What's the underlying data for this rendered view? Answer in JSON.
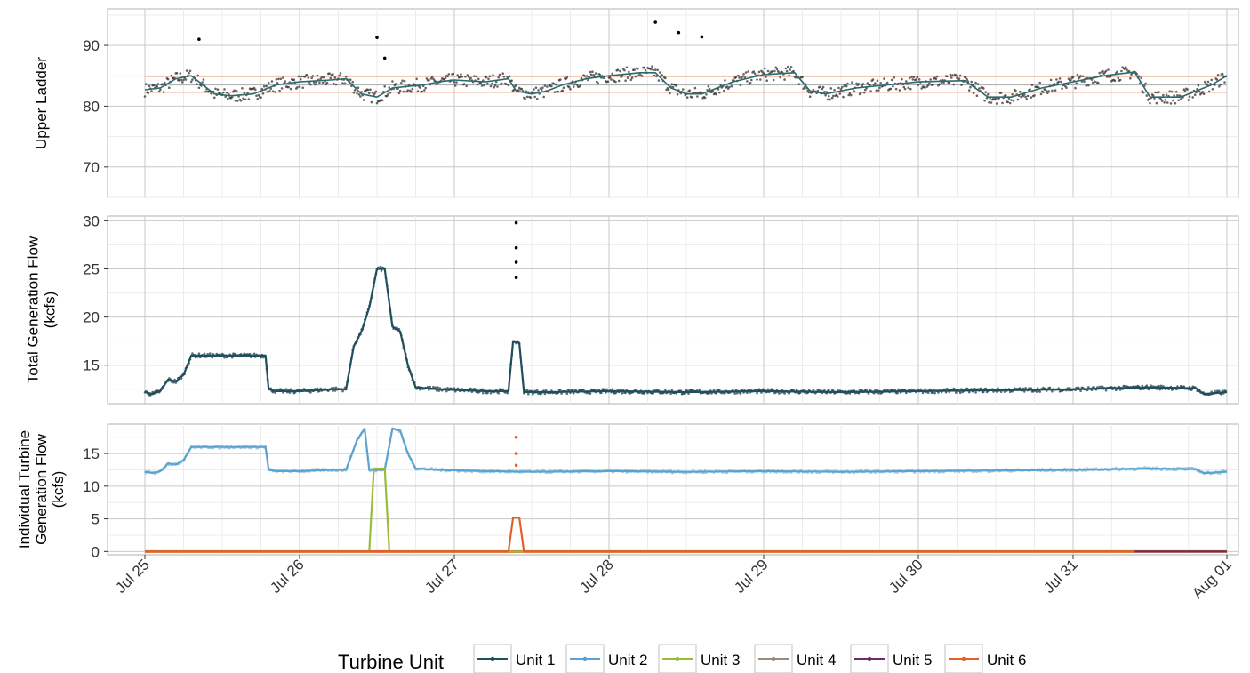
{
  "chart_data": {
    "type": "line",
    "x_axis": {
      "tick_labels": [
        "Jul 25",
        "Jul 26",
        "Jul 27",
        "Jul 28",
        "Jul 29",
        "Jul 30",
        "Jul 31",
        "Aug 01"
      ],
      "range": [
        "2024-07-25",
        "2024-08-01"
      ],
      "rotated_labels": true
    },
    "grid": true,
    "legend": {
      "title": "Turbine Unit",
      "placement": "bottom",
      "entries": [
        {
          "name": "Unit 1",
          "color": "#1f4e5c"
        },
        {
          "name": "Unit 2",
          "color": "#5aa3d0"
        },
        {
          "name": "Unit 3",
          "color": "#9bbb3b"
        },
        {
          "name": "Unit 4",
          "color": "#9a8a7a"
        },
        {
          "name": "Unit 5",
          "color": "#6b2a6b"
        },
        {
          "name": "Unit 6",
          "color": "#e0622a"
        }
      ]
    },
    "panels": [
      {
        "id": "upper",
        "ylabel": [
          "Upper Ladder"
        ],
        "ylim": [
          65,
          96
        ],
        "yticks": [
          70,
          80,
          90
        ],
        "hlines": [
          {
            "y": 82.3,
            "color": "#e8956b"
          },
          {
            "y": 83.5,
            "color": "#b3b3b3"
          },
          {
            "y": 84.9,
            "color": "#e8956b"
          }
        ],
        "series": [
          {
            "name": "Unit 1",
            "color": "#2a6b70",
            "x": [
              0,
              0.1,
              0.2,
              0.3,
              0.45,
              0.55,
              0.7,
              0.85,
              1.0,
              1.2,
              1.3,
              1.4,
              1.5,
              1.6,
              1.8,
              1.9,
              2.0,
              2.2,
              2.35,
              2.4,
              2.5,
              2.6,
              2.7,
              2.85,
              3.0,
              3.2,
              3.3,
              3.4,
              3.5,
              3.6,
              3.8,
              4.0,
              4.2,
              4.3,
              4.4,
              4.6,
              4.8,
              5.0,
              5.3,
              5.45,
              5.6,
              5.8,
              6.0,
              6.2,
              6.4,
              6.5,
              6.7,
              6.9,
              7.0
            ],
            "y": [
              82.7,
              83.0,
              84.5,
              85.0,
              82.0,
              81.7,
              82.0,
              83.5,
              84.0,
              84.3,
              84.5,
              82.0,
              81.5,
              83.0,
              83.5,
              84.0,
              84.3,
              84.0,
              84.5,
              82.5,
              82.0,
              82.5,
              83.5,
              84.5,
              85.0,
              85.5,
              85.5,
              83.0,
              82.0,
              82.0,
              84.0,
              85.2,
              85.5,
              82.5,
              82.0,
              83.0,
              83.5,
              84.0,
              84.2,
              81.5,
              81.5,
              83.0,
              84.0,
              85.0,
              85.6,
              81.5,
              81.5,
              83.5,
              85.0
            ]
          },
          {
            "name": "Outliers",
            "color": "#000000",
            "points": true,
            "x": [
              0.35,
              1.5,
              1.55,
              3.3,
              3.45,
              3.6
            ],
            "y": [
              91.0,
              91.3,
              87.9,
              93.8,
              92.1,
              91.4
            ]
          }
        ]
      },
      {
        "id": "total",
        "ylabel": [
          "Total Generation Flow",
          "(kcfs)"
        ],
        "ylim": [
          11,
          30.5
        ],
        "yticks": [
          15,
          20,
          25,
          30
        ],
        "series": [
          {
            "name": "Unit 1",
            "color": "#1f4e5c",
            "x": [
              0,
              0.05,
              0.1,
              0.15,
              0.2,
              0.25,
              0.3,
              0.35,
              0.7,
              0.78,
              0.8,
              0.85,
              1.0,
              1.2,
              1.3,
              1.35,
              1.4,
              1.45,
              1.5,
              1.55,
              1.6,
              1.65,
              1.7,
              1.75,
              1.9,
              2.2,
              2.35,
              2.38,
              2.42,
              2.45,
              2.6,
              3.0,
              3.5,
              4.0,
              4.5,
              5.0,
              5.5,
              6.0,
              6.5,
              6.8,
              6.85,
              7.0
            ],
            "y": [
              12.2,
              12.0,
              12.3,
              13.5,
              13.3,
              14.0,
              16.0,
              16.0,
              16.0,
              16.0,
              12.5,
              12.3,
              12.3,
              12.5,
              12.5,
              17.0,
              18.5,
              21.0,
              25.0,
              25.0,
              19.0,
              18.5,
              15.0,
              12.7,
              12.5,
              12.3,
              12.3,
              17.5,
              17.3,
              12.2,
              12.2,
              12.3,
              12.2,
              12.3,
              12.2,
              12.3,
              12.4,
              12.5,
              12.7,
              12.6,
              12.0,
              12.2
            ]
          },
          {
            "name": "Outliers",
            "color": "#000000",
            "points": true,
            "x": [
              2.4,
              2.4,
              2.4,
              2.4
            ],
            "y": [
              29.8,
              27.2,
              25.7,
              24.1
            ]
          }
        ]
      },
      {
        "id": "individual",
        "ylabel": [
          "Individual Turbine",
          "Generation Flow",
          "(kcfs)"
        ],
        "ylim": [
          -0.5,
          19.5
        ],
        "yticks": [
          0,
          5,
          10,
          15
        ],
        "series": [
          {
            "name": "Unit 2",
            "color": "#5aa3d0",
            "x": [
              0,
              0.05,
              0.1,
              0.15,
              0.2,
              0.25,
              0.3,
              0.35,
              0.7,
              0.78,
              0.8,
              0.85,
              1.0,
              1.2,
              1.3,
              1.37,
              1.42,
              1.45,
              1.5,
              1.55,
              1.6,
              1.65,
              1.7,
              1.75,
              1.9,
              2.2,
              2.5,
              3.0,
              3.5,
              4.0,
              4.5,
              5.0,
              5.5,
              6.0,
              6.5,
              6.8,
              6.85,
              7.0
            ],
            "y": [
              12.2,
              12.0,
              12.3,
              13.5,
              13.3,
              14.0,
              16.0,
              16.0,
              16.0,
              16.0,
              12.5,
              12.3,
              12.3,
              12.5,
              12.5,
              17.0,
              18.8,
              12.5,
              12.5,
              12.5,
              18.8,
              18.5,
              15.0,
              12.7,
              12.5,
              12.3,
              12.2,
              12.3,
              12.2,
              12.3,
              12.2,
              12.3,
              12.4,
              12.5,
              12.7,
              12.6,
              12.0,
              12.2
            ]
          },
          {
            "name": "Unit 3",
            "color": "#9bbb3b",
            "x": [
              0,
              1.45,
              1.48,
              1.55,
              1.58,
              7.0
            ],
            "y": [
              0,
              0,
              12.7,
              12.7,
              0,
              0
            ]
          },
          {
            "name": "Unit 5",
            "color": "#6b2a6b",
            "x": [
              6.4,
              7.0
            ],
            "y": [
              0,
              0
            ]
          },
          {
            "name": "Unit 6",
            "color": "#e0622a",
            "x": [
              0,
              2.35,
              2.38,
              2.42,
              2.45,
              6.4
            ],
            "y": [
              0,
              0,
              5.2,
              5.2,
              0,
              0
            ]
          },
          {
            "name": "Outliers",
            "color": "#e0622a",
            "points": true,
            "x": [
              2.4,
              2.4,
              2.4
            ],
            "y": [
              17.5,
              15.0,
              13.2
            ]
          }
        ]
      }
    ]
  }
}
